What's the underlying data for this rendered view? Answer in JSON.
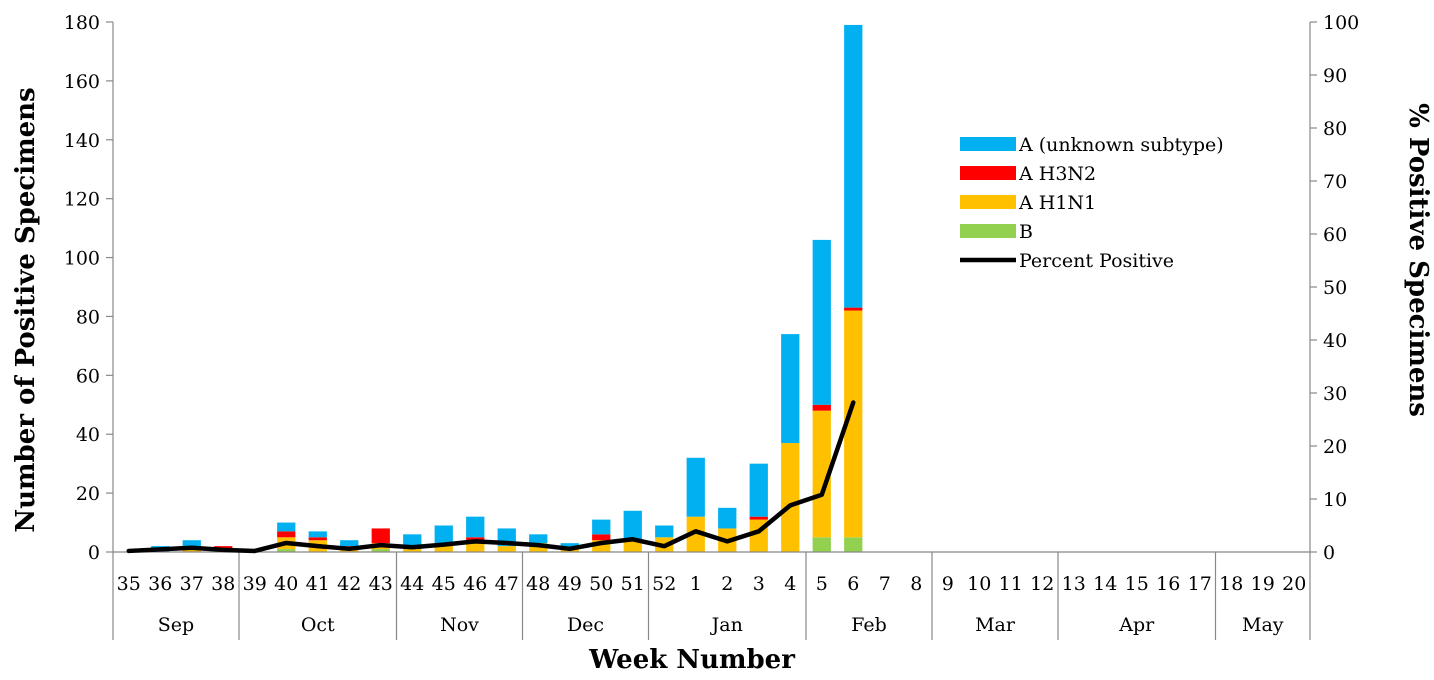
{
  "chart_data": {
    "type": "bar",
    "stacked": true,
    "xlabel": "Week Number",
    "ylabel": "Number of Positive Specimens",
    "y2label": "% Positive Specimens",
    "ylim": [
      0,
      180
    ],
    "y2lim": [
      0,
      100
    ],
    "yticks": [
      0,
      20,
      40,
      60,
      80,
      100,
      120,
      140,
      160,
      180
    ],
    "y2ticks": [
      0,
      10,
      20,
      30,
      40,
      50,
      60,
      70,
      80,
      90,
      100
    ],
    "grid": false,
    "legend_position": "right",
    "categories": [
      "35",
      "36",
      "37",
      "38",
      "39",
      "40",
      "41",
      "42",
      "43",
      "44",
      "45",
      "46",
      "47",
      "48",
      "49",
      "50",
      "51",
      "52",
      "1",
      "2",
      "3",
      "4",
      "5",
      "6",
      "7",
      "8",
      "9",
      "10",
      "11",
      "12",
      "13",
      "14",
      "15",
      "16",
      "17",
      "18",
      "19",
      "20"
    ],
    "months": [
      {
        "label": "Sep",
        "weeks": 4
      },
      {
        "label": "Oct",
        "weeks": 5
      },
      {
        "label": "Nov",
        "weeks": 4
      },
      {
        "label": "Dec",
        "weeks": 4
      },
      {
        "label": "Jan",
        "weeks": 5
      },
      {
        "label": "Feb",
        "weeks": 4
      },
      {
        "label": "Mar",
        "weeks": 4
      },
      {
        "label": "Apr",
        "weeks": 5
      },
      {
        "label": "May",
        "weeks": 3
      }
    ],
    "series": [
      {
        "name": "B",
        "color": "#92D050",
        "values": [
          0,
          0,
          0,
          0,
          0,
          1,
          0,
          0,
          1,
          0,
          0,
          0,
          0,
          0,
          0,
          0,
          0,
          0,
          0,
          0,
          0,
          0,
          5,
          5,
          0,
          0,
          0,
          0,
          0,
          0,
          0,
          0,
          0,
          0,
          0,
          0,
          0,
          0
        ]
      },
      {
        "name": "A H1N1",
        "color": "#FFC000",
        "values": [
          0,
          0,
          1,
          1,
          0,
          4,
          4,
          1,
          2,
          1,
          2,
          3,
          2,
          3,
          1,
          4,
          4,
          5,
          12,
          8,
          11,
          37,
          43,
          77,
          0,
          0,
          0,
          0,
          0,
          0,
          0,
          0,
          0,
          0,
          0,
          0,
          0,
          0
        ]
      },
      {
        "name": "A H3N2",
        "color": "#FF0000",
        "values": [
          0,
          0,
          1,
          1,
          0,
          2,
          1,
          1,
          5,
          0,
          1,
          2,
          0,
          0,
          0,
          2,
          0,
          0,
          0,
          0,
          1,
          0,
          2,
          1,
          0,
          0,
          0,
          0,
          0,
          0,
          0,
          0,
          0,
          0,
          0,
          0,
          0,
          0
        ]
      },
      {
        "name": "A (unknown subtype)",
        "color": "#00B0F0",
        "values": [
          0,
          2,
          2,
          0,
          0,
          3,
          2,
          2,
          0,
          5,
          6,
          7,
          6,
          3,
          2,
          5,
          10,
          4,
          20,
          7,
          18,
          37,
          56,
          96,
          0,
          0,
          0,
          0,
          0,
          0,
          0,
          0,
          0,
          0,
          0,
          0,
          0,
          0
        ]
      },
      {
        "name": "Percent Positive",
        "type": "line",
        "axis": "right",
        "color": "#000000",
        "values": [
          0.2,
          0.5,
          0.8,
          0.4,
          0.2,
          1.7,
          1.1,
          0.6,
          1.3,
          0.9,
          1.4,
          2.0,
          1.7,
          1.3,
          0.6,
          1.7,
          2.4,
          1.1,
          3.9,
          2.0,
          3.9,
          8.8,
          10.8,
          28.2,
          null,
          null,
          null,
          null,
          null,
          null,
          null,
          null,
          null,
          null,
          null,
          null,
          null,
          null
        ]
      }
    ],
    "legend_order": [
      "A (unknown subtype)",
      "A H3N2",
      "A H1N1",
      "B",
      "Percent Positive"
    ]
  }
}
